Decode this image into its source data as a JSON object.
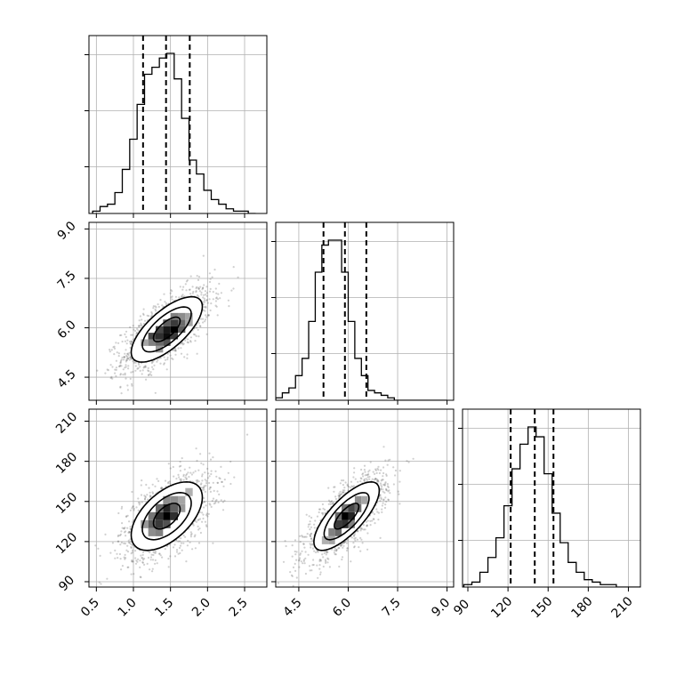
{
  "chart_data": {
    "type": "corner",
    "variables": [
      {
        "index": 0,
        "range": [
          0.4,
          2.8
        ],
        "ticks": [
          0.5,
          1.0,
          1.5,
          2.0,
          2.5
        ],
        "tick_labels": [
          "0.5",
          "1.0",
          "1.5",
          "2.0",
          "2.5"
        ],
        "quantiles": [
          1.13,
          1.44,
          1.76
        ],
        "hist_edges_start": 0.45,
        "hist_bin_width": 0.1,
        "hist_counts": [
          1,
          3,
          4,
          9,
          19,
          32,
          47,
          60,
          63,
          67,
          69,
          58,
          41,
          23,
          17,
          10,
          6,
          4,
          2,
          1,
          1,
          0
        ]
      },
      {
        "index": 1,
        "range": [
          3.8,
          9.2
        ],
        "ticks": [
          4.5,
          6.0,
          7.5,
          9.0
        ],
        "tick_labels": [
          "4.5",
          "6.0",
          "7.5",
          "9.0"
        ],
        "quantiles": [
          5.25,
          5.9,
          6.55
        ],
        "hist_edges_start": 3.8,
        "hist_bin_width": 0.2,
        "hist_counts": [
          1,
          3,
          5,
          10,
          17,
          32,
          52,
          63,
          65,
          65,
          52,
          32,
          17,
          10,
          4,
          3,
          2,
          1,
          0,
          0,
          0,
          0,
          0,
          0,
          0,
          0
        ]
      },
      {
        "index": 2,
        "range": [
          86,
          219
        ],
        "ticks": [
          90,
          120,
          150,
          180,
          210
        ],
        "tick_labels": [
          "90",
          "120",
          "150",
          "180",
          "210"
        ],
        "quantiles": [
          122,
          140,
          154
        ],
        "hist_edges_start": 87,
        "hist_bin_width": 6,
        "hist_counts": [
          1,
          2,
          6,
          12,
          20,
          33,
          48,
          58,
          65,
          61,
          46,
          30,
          18,
          10,
          6,
          3,
          2,
          1,
          1,
          0,
          0,
          0
        ]
      }
    ],
    "pairs": [
      {
        "x": 0,
        "y": 1,
        "mean": [
          1.45,
          5.95
        ],
        "sd": [
          0.3,
          0.62
        ],
        "rho": 0.7,
        "contour_levels_sd": [
          0.6,
          1.1,
          1.6
        ],
        "density_cells": [
          {
            "x": 1.35,
            "y": 5.55,
            "v": 0.55
          },
          {
            "x": 1.45,
            "y": 5.55,
            "v": 0.65
          },
          {
            "x": 1.25,
            "y": 5.75,
            "v": 0.7
          },
          {
            "x": 1.35,
            "y": 5.75,
            "v": 0.8
          },
          {
            "x": 1.45,
            "y": 5.75,
            "v": 0.95
          },
          {
            "x": 1.55,
            "y": 5.75,
            "v": 0.75
          },
          {
            "x": 1.35,
            "y": 5.95,
            "v": 0.7
          },
          {
            "x": 1.45,
            "y": 5.95,
            "v": 0.9
          },
          {
            "x": 1.55,
            "y": 5.95,
            "v": 1.0
          },
          {
            "x": 1.65,
            "y": 5.95,
            "v": 0.6
          },
          {
            "x": 1.45,
            "y": 6.15,
            "v": 0.6
          },
          {
            "x": 1.55,
            "y": 6.15,
            "v": 0.75
          },
          {
            "x": 1.65,
            "y": 6.15,
            "v": 0.55
          },
          {
            "x": 1.55,
            "y": 6.35,
            "v": 0.45
          },
          {
            "x": 1.65,
            "y": 6.35,
            "v": 0.4
          },
          {
            "x": 1.25,
            "y": 5.55,
            "v": 0.45
          },
          {
            "x": 1.15,
            "y": 5.55,
            "v": 0.3
          },
          {
            "x": 1.35,
            "y": 5.35,
            "v": 0.35
          },
          {
            "x": 1.75,
            "y": 6.15,
            "v": 0.3
          },
          {
            "x": 1.75,
            "y": 6.35,
            "v": 0.3
          }
        ]
      },
      {
        "x": 0,
        "y": 2,
        "mean": [
          1.45,
          139
        ],
        "sd": [
          0.3,
          16
        ],
        "rho": 0.55,
        "contour_levels_sd": [
          0.6,
          1.1,
          1.6
        ],
        "density_cells": [
          {
            "x": 1.25,
            "y": 133,
            "v": 0.6
          },
          {
            "x": 1.35,
            "y": 133,
            "v": 0.75
          },
          {
            "x": 1.45,
            "y": 133,
            "v": 0.65
          },
          {
            "x": 1.35,
            "y": 139,
            "v": 0.8
          },
          {
            "x": 1.45,
            "y": 139,
            "v": 1.0
          },
          {
            "x": 1.55,
            "y": 139,
            "v": 0.8
          },
          {
            "x": 1.45,
            "y": 145,
            "v": 0.85
          },
          {
            "x": 1.55,
            "y": 145,
            "v": 0.6
          },
          {
            "x": 1.35,
            "y": 145,
            "v": 0.55
          },
          {
            "x": 1.25,
            "y": 139,
            "v": 0.5
          },
          {
            "x": 1.15,
            "y": 133,
            "v": 0.35
          },
          {
            "x": 1.25,
            "y": 127,
            "v": 0.4
          },
          {
            "x": 1.35,
            "y": 127,
            "v": 0.45
          },
          {
            "x": 1.55,
            "y": 151,
            "v": 0.4
          },
          {
            "x": 1.65,
            "y": 151,
            "v": 0.3
          },
          {
            "x": 1.65,
            "y": 145,
            "v": 0.35
          },
          {
            "x": 1.75,
            "y": 157,
            "v": 0.25
          },
          {
            "x": 1.45,
            "y": 151,
            "v": 0.4
          }
        ]
      },
      {
        "x": 1,
        "y": 2,
        "mean": [
          5.95,
          139
        ],
        "sd": [
          0.62,
          16
        ],
        "rho": 0.75,
        "contour_levels_sd": [
          0.6,
          1.1,
          1.6
        ],
        "density_cells": [
          {
            "x": 5.5,
            "y": 127,
            "v": 0.45
          },
          {
            "x": 5.7,
            "y": 127,
            "v": 0.55
          },
          {
            "x": 5.7,
            "y": 133,
            "v": 0.75
          },
          {
            "x": 5.9,
            "y": 133,
            "v": 0.8
          },
          {
            "x": 5.9,
            "y": 139,
            "v": 1.0
          },
          {
            "x": 6.1,
            "y": 139,
            "v": 0.85
          },
          {
            "x": 6.1,
            "y": 145,
            "v": 0.7
          },
          {
            "x": 6.3,
            "y": 145,
            "v": 0.55
          },
          {
            "x": 5.7,
            "y": 139,
            "v": 0.55
          },
          {
            "x": 6.3,
            "y": 151,
            "v": 0.4
          },
          {
            "x": 6.5,
            "y": 151,
            "v": 0.3
          },
          {
            "x": 5.5,
            "y": 121,
            "v": 0.3
          },
          {
            "x": 5.3,
            "y": 121,
            "v": 0.25
          },
          {
            "x": 6.1,
            "y": 133,
            "v": 0.45
          },
          {
            "x": 5.9,
            "y": 145,
            "v": 0.5
          }
        ]
      }
    ],
    "scatter_points_per_panel": 1400,
    "grid": true,
    "title": "",
    "xlabel": "",
    "ylabel": ""
  }
}
